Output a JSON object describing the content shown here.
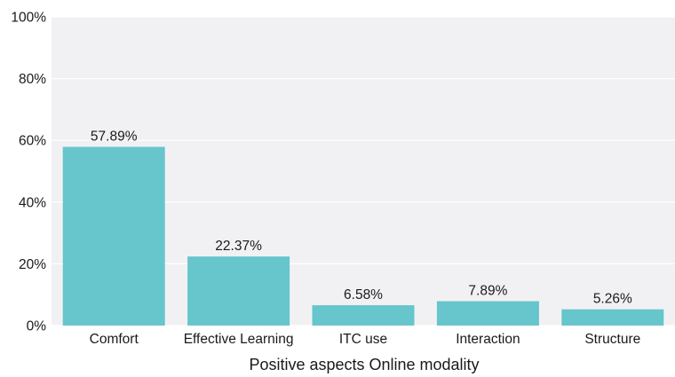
{
  "chart_data": {
    "type": "bar",
    "categories": [
      "Comfort",
      "Effective Learning",
      "ITC use",
      "Interaction",
      "Structure"
    ],
    "values": [
      57.89,
      22.37,
      6.58,
      7.89,
      5.26
    ],
    "data_labels": [
      "57.89%",
      "22.37%",
      "6.58%",
      "7.89%",
      "5.26%"
    ],
    "title": "",
    "xlabel": "Positive aspects Online modality",
    "ylabel": "",
    "ylim": [
      0,
      100
    ],
    "yticks": [
      0,
      20,
      40,
      60,
      80,
      100
    ],
    "ytick_labels": [
      "0%",
      "20%",
      "40%",
      "60%",
      "80%",
      "100%"
    ],
    "grid": true,
    "legend": "none",
    "bar_color": "#67c5cc",
    "plot_background": "#f1f1f4"
  }
}
